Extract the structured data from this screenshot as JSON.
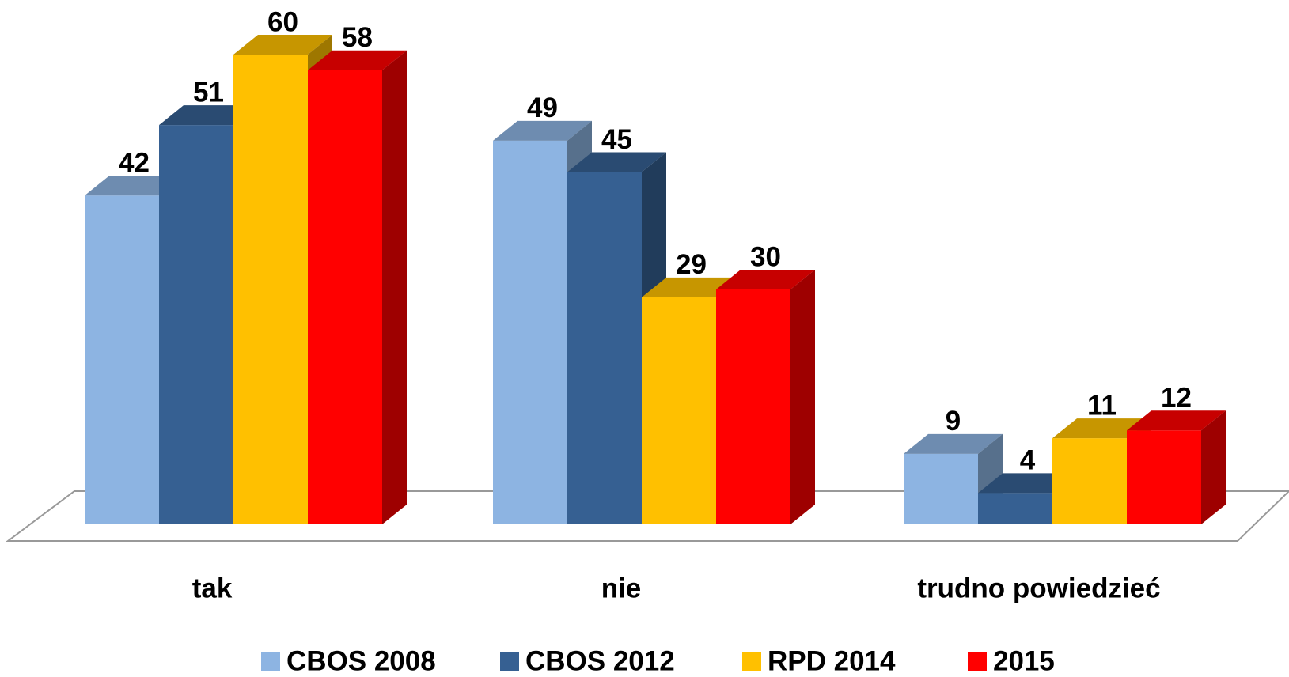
{
  "chart_data": {
    "type": "bar3d",
    "categories": [
      "tak",
      "nie",
      "trudno powiedzieć"
    ],
    "series": [
      {
        "name": "CBOS 2008",
        "color": "#8db4e2",
        "values": [
          42,
          49,
          9
        ]
      },
      {
        "name": "CBOS 2012",
        "color": "#366092",
        "values": [
          51,
          45,
          4
        ]
      },
      {
        "name": "RPD 2014",
        "color": "#ffc000",
        "values": [
          60,
          29,
          11
        ]
      },
      {
        "name": "2015",
        "color": "#ff0000",
        "values": [
          58,
          30,
          12
        ]
      }
    ],
    "legend": "bottom"
  }
}
